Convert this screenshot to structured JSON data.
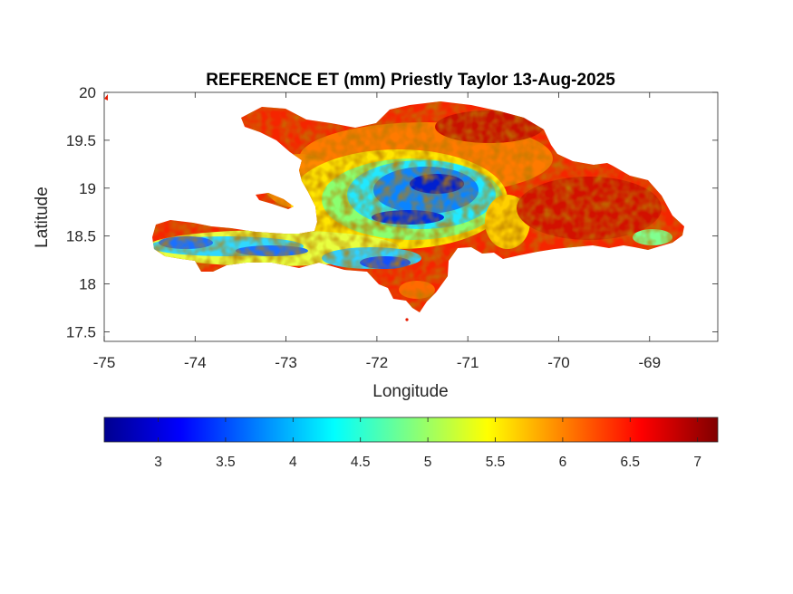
{
  "figure": {
    "title": "REFERENCE ET (mm) Priestly Taylor 13-Aug-2025",
    "xlabel": "Longitude",
    "ylabel": "Latitude"
  },
  "map": {
    "region": "Hispaniola",
    "xlim": [
      -75,
      -68.25
    ],
    "ylim": [
      17.4,
      20
    ],
    "xticks": [
      -75,
      -74,
      -73,
      -72,
      -71,
      -70,
      -69
    ],
    "yticks": [
      17.5,
      18,
      18.5,
      19,
      19.5,
      20
    ],
    "xtick_labels": [
      "-75",
      "-74",
      "-73",
      "-72",
      "-71",
      "-70",
      "-69"
    ],
    "ytick_labels": [
      "17.5",
      "18",
      "18.5",
      "19",
      "19.5",
      "20"
    ]
  },
  "colorbar": {
    "colormap": "jet",
    "clim": [
      2.6,
      7.15
    ],
    "ticks": [
      3,
      3.5,
      4,
      4.5,
      5,
      5.5,
      6,
      6.5,
      7
    ],
    "tick_labels": [
      "3",
      "3.5",
      "4",
      "4.5",
      "5",
      "5.5",
      "6",
      "6.5",
      "7"
    ],
    "colors": [
      "#00008f",
      "#0000ff",
      "#0080ff",
      "#00ffff",
      "#80ff80",
      "#ffff00",
      "#ff8000",
      "#ff0000",
      "#800000"
    ]
  },
  "chart_data": {
    "type": "heatmap",
    "title": "REFERENCE ET (mm) Priestly Taylor 13-Aug-2025",
    "xlabel": "Longitude",
    "ylabel": "Latitude",
    "xlim": [
      -75,
      -68.25
    ],
    "ylim": [
      17.4,
      20
    ],
    "value_range": [
      2.6,
      7.15
    ],
    "units": "mm",
    "grid": false
  }
}
